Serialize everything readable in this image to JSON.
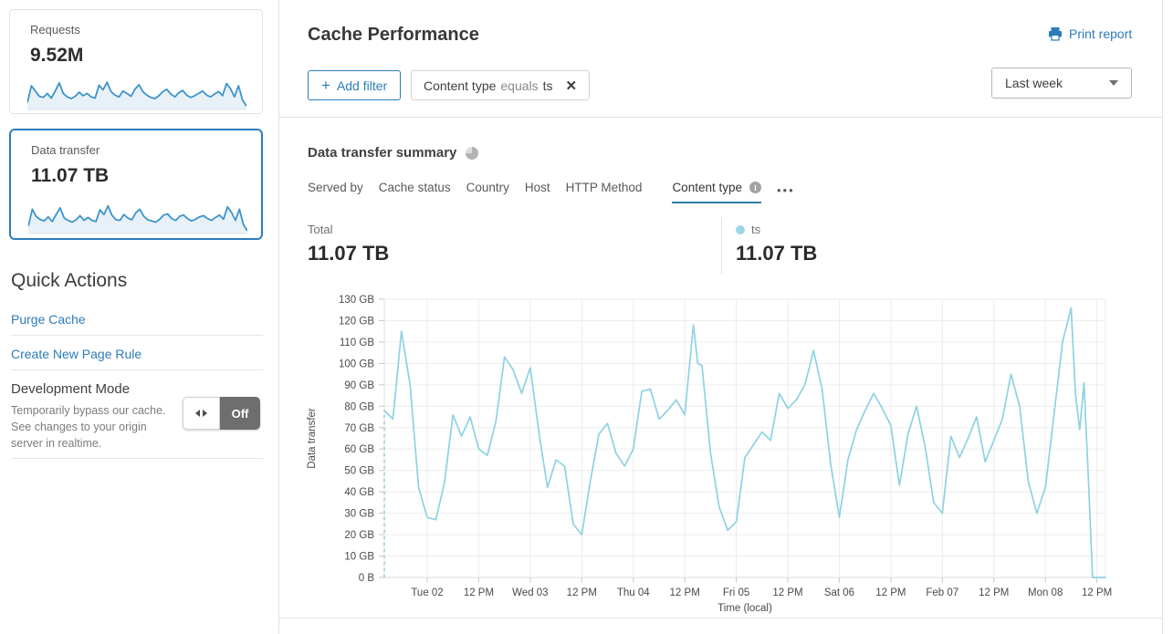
{
  "sidebar": {
    "cards": [
      {
        "label": "Requests",
        "value": "9.52M",
        "selected": false,
        "spark": [
          20,
          78,
          60,
          42,
          38,
          52,
          36,
          60,
          88,
          52,
          40,
          34,
          42,
          56,
          44,
          52,
          40,
          36,
          80,
          64,
          90,
          58,
          46,
          40,
          60,
          52,
          42,
          66,
          82,
          58,
          46,
          38,
          34,
          44,
          58,
          66,
          50,
          40,
          54,
          62,
          46,
          38,
          44,
          52,
          60,
          46,
          40,
          50,
          58,
          44,
          86,
          68,
          40,
          78,
          30,
          8
        ]
      },
      {
        "label": "Data transfer",
        "value": "11.07 TB",
        "selected": true,
        "spark": [
          22,
          80,
          55,
          45,
          40,
          54,
          38,
          62,
          85,
          50,
          42,
          36,
          44,
          58,
          42,
          52,
          42,
          38,
          78,
          62,
          92,
          60,
          44,
          42,
          62,
          50,
          44,
          68,
          80,
          56,
          44,
          40,
          36,
          46,
          60,
          64,
          48,
          42,
          56,
          60,
          48,
          40,
          46,
          54,
          58,
          48,
          42,
          52,
          60,
          46,
          88,
          70,
          42,
          80,
          28,
          6
        ]
      }
    ],
    "quick_actions": {
      "title": "Quick Actions",
      "links": [
        {
          "label": "Purge Cache"
        },
        {
          "label": "Create New Page Rule"
        }
      ],
      "dev_mode": {
        "title": "Development Mode",
        "description": "Temporarily bypass our cache. See changes to your origin server in realtime.",
        "toggle_state": "Off"
      }
    }
  },
  "header": {
    "title": "Cache Performance",
    "print_label": "Print report"
  },
  "filters": {
    "add_label": "Add filter",
    "add_plus": "+",
    "chip": {
      "field": "Content type",
      "operator": "equals",
      "value": "ts",
      "close": "✕"
    },
    "time_range": "Last week"
  },
  "summary": {
    "title": "Data transfer summary",
    "tabs": [
      {
        "label": "Served by",
        "active": false
      },
      {
        "label": "Cache status",
        "active": false
      },
      {
        "label": "Country",
        "active": false
      },
      {
        "label": "Host",
        "active": false
      },
      {
        "label": "HTTP Method",
        "active": false
      },
      {
        "label": "Content type",
        "active": true,
        "info": "i"
      }
    ],
    "more": "•••",
    "total": {
      "label": "Total",
      "value": "11.07 TB"
    },
    "legend": {
      "label": "ts",
      "value": "11.07 TB",
      "color": "#9fd7e6"
    }
  },
  "chart_data": {
    "type": "line",
    "title": "Data transfer summary",
    "xlabel": "Time (local)",
    "ylabel": "Data transfer",
    "unit": "GB",
    "ylim": [
      0,
      130
    ],
    "xlim_hours": [
      0,
      168
    ],
    "grid": true,
    "yticks": [
      {
        "v": 0,
        "label": "0 B"
      },
      {
        "v": 10,
        "label": "10 GB"
      },
      {
        "v": 20,
        "label": "20 GB"
      },
      {
        "v": 30,
        "label": "30 GB"
      },
      {
        "v": 40,
        "label": "40 GB"
      },
      {
        "v": 50,
        "label": "50 GB"
      },
      {
        "v": 60,
        "label": "60 GB"
      },
      {
        "v": 70,
        "label": "70 GB"
      },
      {
        "v": 80,
        "label": "80 GB"
      },
      {
        "v": 90,
        "label": "90 GB"
      },
      {
        "v": 100,
        "label": "100 GB"
      },
      {
        "v": 110,
        "label": "110 GB"
      },
      {
        "v": 120,
        "label": "120 GB"
      },
      {
        "v": 130,
        "label": "130 GB"
      }
    ],
    "xticks": [
      {
        "t": 10,
        "label": "Tue 02"
      },
      {
        "t": 22,
        "label": "12 PM"
      },
      {
        "t": 34,
        "label": "Wed 03"
      },
      {
        "t": 46,
        "label": "12 PM"
      },
      {
        "t": 58,
        "label": "Thu 04"
      },
      {
        "t": 70,
        "label": "12 PM"
      },
      {
        "t": 82,
        "label": "Fri 05"
      },
      {
        "t": 94,
        "label": "12 PM"
      },
      {
        "t": 106,
        "label": "Sat 06"
      },
      {
        "t": 118,
        "label": "12 PM"
      },
      {
        "t": 130,
        "label": "Feb 07"
      },
      {
        "t": 142,
        "label": "12 PM"
      },
      {
        "t": 154,
        "label": "Mon 08"
      },
      {
        "t": 166,
        "label": "12 PM"
      }
    ],
    "series": [
      {
        "name": "ts",
        "color": "#8ed2e3",
        "dash_start": {
          "t": 0,
          "from": 0,
          "to": 78
        },
        "points": [
          [
            0,
            78
          ],
          [
            2,
            74
          ],
          [
            4,
            115
          ],
          [
            6,
            90
          ],
          [
            8,
            42
          ],
          [
            10,
            28
          ],
          [
            12,
            27
          ],
          [
            14,
            44
          ],
          [
            16,
            76
          ],
          [
            18,
            66
          ],
          [
            20,
            75
          ],
          [
            22,
            60
          ],
          [
            24,
            57
          ],
          [
            26,
            73
          ],
          [
            28,
            103
          ],
          [
            30,
            97
          ],
          [
            32,
            86
          ],
          [
            34,
            98
          ],
          [
            36,
            68
          ],
          [
            38,
            42
          ],
          [
            40,
            55
          ],
          [
            42,
            52
          ],
          [
            44,
            25
          ],
          [
            46,
            20
          ],
          [
            48,
            45
          ],
          [
            50,
            67
          ],
          [
            52,
            72
          ],
          [
            54,
            58
          ],
          [
            56,
            52
          ],
          [
            58,
            60
          ],
          [
            60,
            87
          ],
          [
            62,
            88
          ],
          [
            64,
            74
          ],
          [
            66,
            78
          ],
          [
            68,
            83
          ],
          [
            70,
            76
          ],
          [
            72,
            118
          ],
          [
            73,
            100
          ],
          [
            74,
            99
          ],
          [
            76,
            58
          ],
          [
            78,
            33
          ],
          [
            80,
            22
          ],
          [
            82,
            26
          ],
          [
            84,
            56
          ],
          [
            86,
            62
          ],
          [
            88,
            68
          ],
          [
            90,
            64
          ],
          [
            92,
            86
          ],
          [
            94,
            79
          ],
          [
            96,
            83
          ],
          [
            98,
            90
          ],
          [
            100,
            106
          ],
          [
            102,
            88
          ],
          [
            104,
            53
          ],
          [
            106,
            28
          ],
          [
            108,
            55
          ],
          [
            110,
            69
          ],
          [
            112,
            78
          ],
          [
            114,
            86
          ],
          [
            116,
            79
          ],
          [
            118,
            71
          ],
          [
            120,
            43
          ],
          [
            122,
            67
          ],
          [
            124,
            80
          ],
          [
            126,
            61
          ],
          [
            128,
            35
          ],
          [
            130,
            30
          ],
          [
            132,
            66
          ],
          [
            134,
            56
          ],
          [
            136,
            65
          ],
          [
            138,
            75
          ],
          [
            140,
            54
          ],
          [
            142,
            64
          ],
          [
            144,
            74
          ],
          [
            146,
            95
          ],
          [
            148,
            80
          ],
          [
            150,
            45
          ],
          [
            152,
            30
          ],
          [
            154,
            42
          ],
          [
            156,
            76
          ],
          [
            158,
            110
          ],
          [
            160,
            126
          ],
          [
            161,
            86
          ],
          [
            162,
            69
          ],
          [
            163,
            91
          ],
          [
            164,
            47
          ],
          [
            165,
            0
          ],
          [
            168,
            0
          ]
        ]
      }
    ]
  },
  "colors": {
    "accent_blue": "#2c7cb8",
    "selected_border": "#2f7cba",
    "spark_line": "#3d94cc",
    "spark_fill": "#e9f1f8",
    "chart_line": "#8ed2e3",
    "tab_underline": "#2f7fa3",
    "toggle_off_bg": "#6e6e6e"
  }
}
